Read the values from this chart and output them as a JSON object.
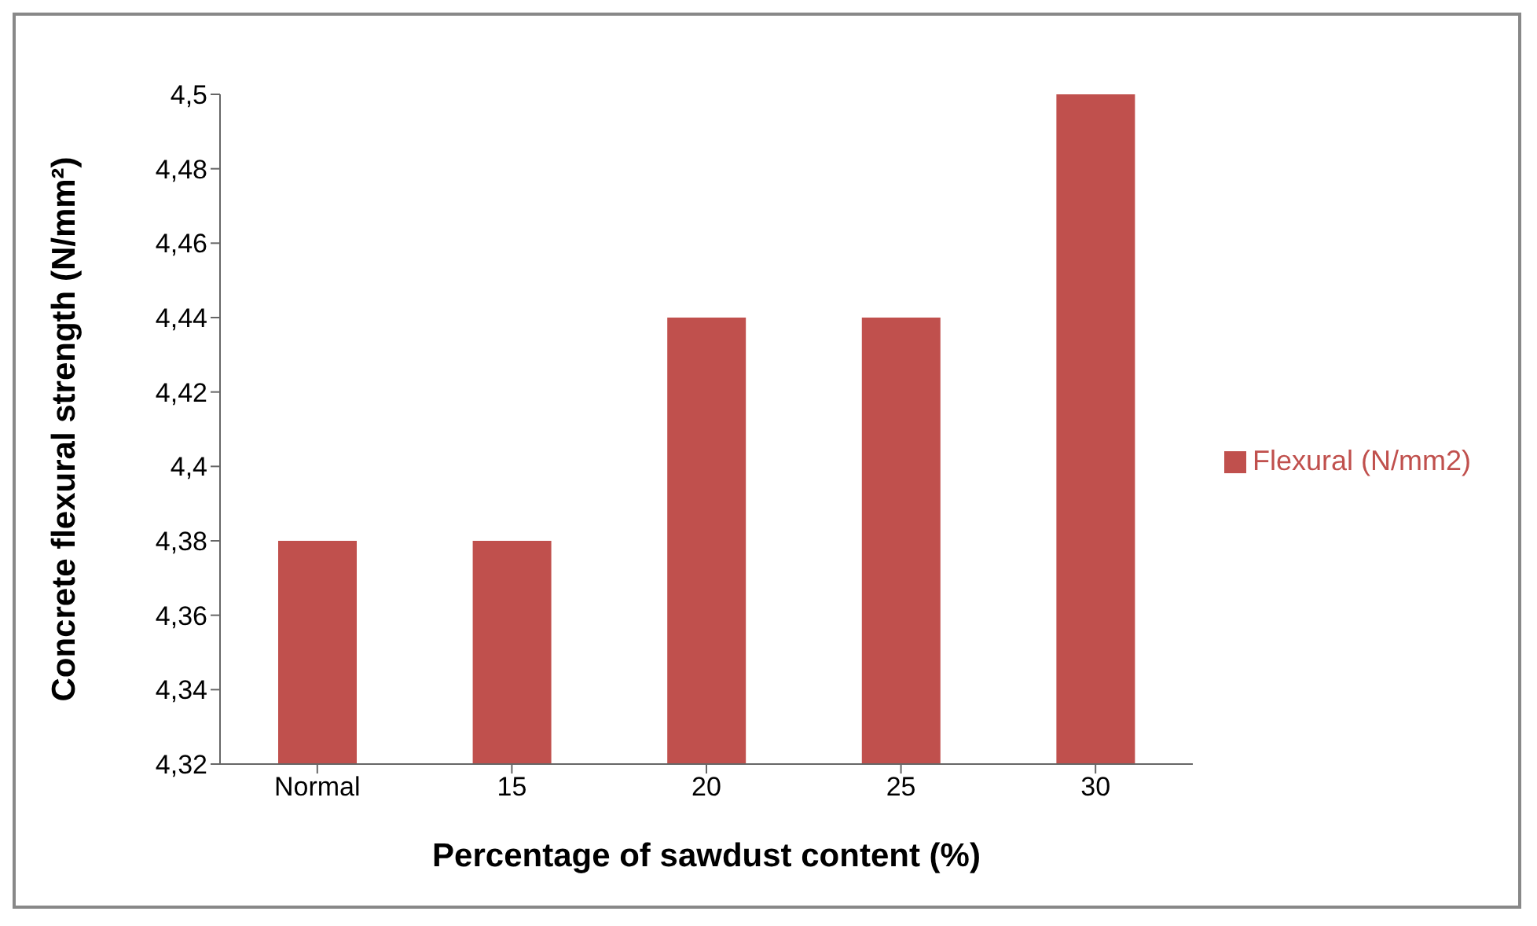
{
  "chart_data": {
    "type": "bar",
    "xlabel": "Percentage of sawdust content (%)",
    "ylabel": "Concrete flexural strength (N/mm²)",
    "categories": [
      "Normal",
      "15",
      "20",
      "25",
      "30"
    ],
    "series": [
      {
        "name": "Flexural (N/mm2)",
        "color": "#c0504d",
        "values": [
          4.38,
          4.38,
          4.44,
          4.44,
          4.5
        ]
      }
    ],
    "ylim": [
      4.32,
      4.5
    ],
    "yticks": [
      {
        "value": 4.32,
        "label": "4,32"
      },
      {
        "value": 4.34,
        "label": "4,34"
      },
      {
        "value": 4.36,
        "label": "4,36"
      },
      {
        "value": 4.38,
        "label": "4,38"
      },
      {
        "value": 4.4,
        "label": "4,4"
      },
      {
        "value": 4.42,
        "label": "4,42"
      },
      {
        "value": 4.44,
        "label": "4,44"
      },
      {
        "value": 4.46,
        "label": "4,46"
      },
      {
        "value": 4.48,
        "label": "4,48"
      },
      {
        "value": 4.5,
        "label": "4,5"
      }
    ],
    "grid": false,
    "legend": "right"
  }
}
